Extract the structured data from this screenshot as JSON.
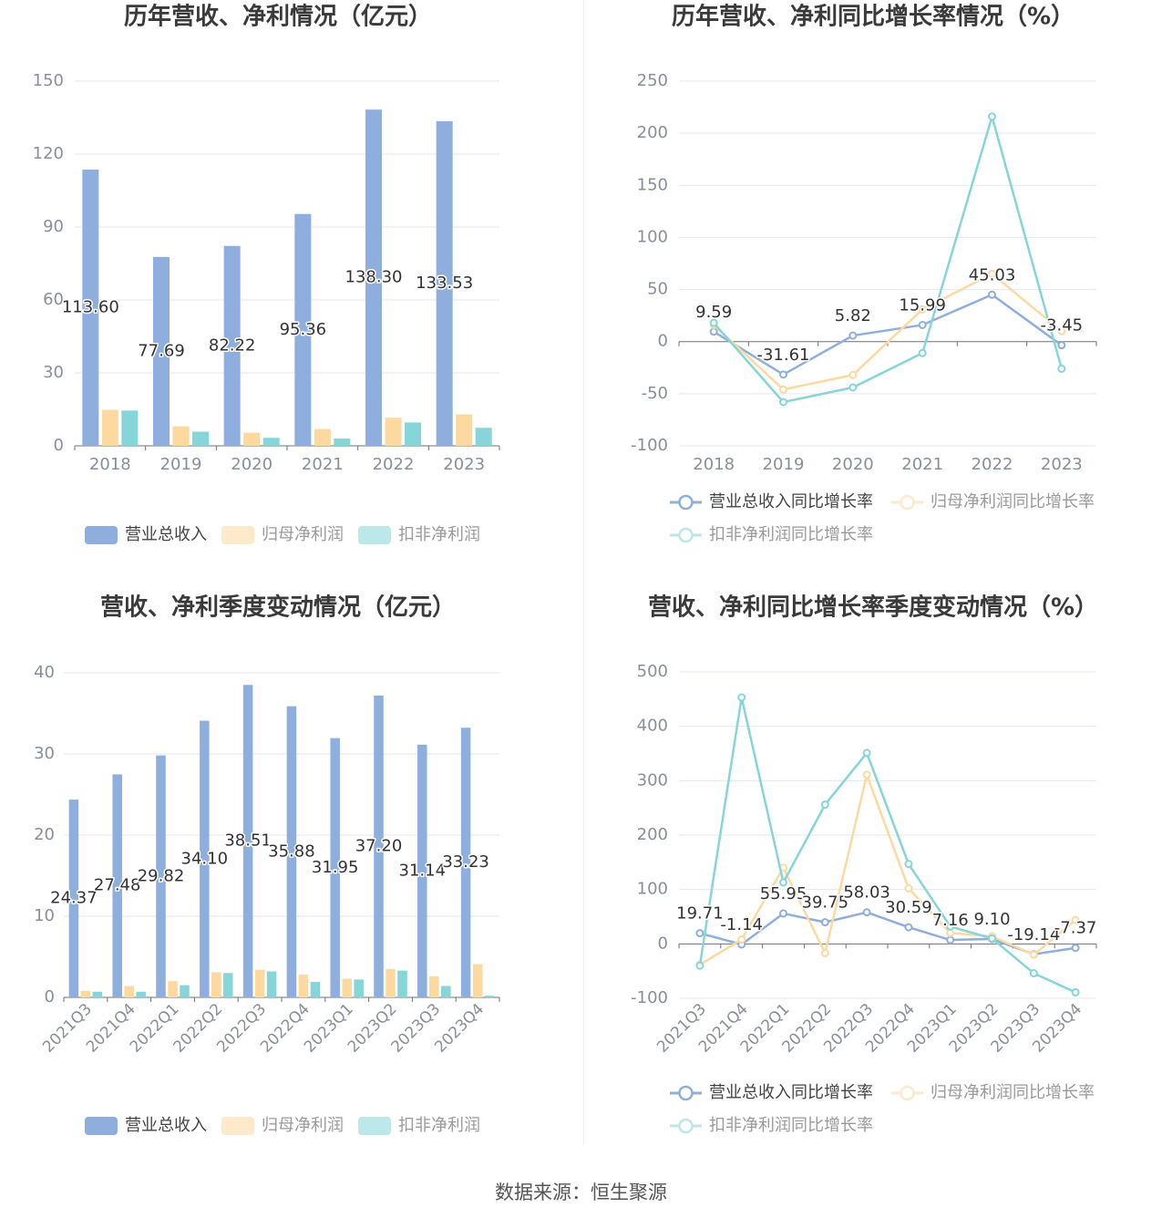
{
  "colors": {
    "series": [
      "#8eaedd",
      "#fdd9a0",
      "#86d5d9"
    ]
  },
  "chart_data": [
    {
      "type": "bar",
      "title": "历年营收、净利情况（亿元）",
      "categories": [
        "2018",
        "2019",
        "2020",
        "2021",
        "2022",
        "2023"
      ],
      "ylim": [
        0,
        150
      ],
      "yticks": [
        0,
        30,
        60,
        90,
        120,
        150
      ],
      "grid": true,
      "legend": "bottom",
      "series": [
        {
          "name": "营业总收入",
          "values": [
            113.6,
            77.69,
            82.22,
            95.36,
            138.3,
            133.53
          ],
          "data_labels": [
            "113.60",
            "77.69",
            "82.22",
            "95.36",
            "138.30",
            "133.53"
          ]
        },
        {
          "name": "归母净利润",
          "values": [
            14.8,
            8.0,
            5.4,
            6.9,
            11.6,
            12.9
          ]
        },
        {
          "name": "扣非净利润",
          "values": [
            14.5,
            5.8,
            3.3,
            3.0,
            9.6,
            7.4
          ]
        }
      ]
    },
    {
      "type": "line",
      "title": "历年营收、净利同比增长率情况（%）",
      "categories": [
        "2018",
        "2019",
        "2020",
        "2021",
        "2022",
        "2023"
      ],
      "ylim": [
        -100,
        250
      ],
      "yticks": [
        -100,
        -50,
        0,
        50,
        100,
        150,
        200,
        250
      ],
      "grid": true,
      "legend": "bottom",
      "series": [
        {
          "name": "营业总收入同比增长率",
          "values": [
            9.59,
            -31.61,
            5.82,
            15.99,
            45.03,
            -3.45
          ],
          "data_labels": [
            "9.59",
            "-31.61",
            "5.82",
            "15.99",
            "45.03",
            "-3.45"
          ]
        },
        {
          "name": "归母净利润同比增长率",
          "values": [
            16,
            -46,
            -32,
            31,
            65,
            10
          ]
        },
        {
          "name": "扣非净利润同比增长率",
          "values": [
            18,
            -58,
            -44,
            -11,
            216,
            -26
          ]
        }
      ]
    },
    {
      "type": "bar",
      "title": "营收、净利季度变动情况（亿元）",
      "categories": [
        "2021Q3",
        "2021Q4",
        "2022Q1",
        "2022Q2",
        "2022Q3",
        "2022Q4",
        "2023Q1",
        "2023Q2",
        "2023Q3",
        "2023Q4"
      ],
      "ylim": [
        0,
        40
      ],
      "yticks": [
        0,
        10,
        20,
        30,
        40
      ],
      "grid": true,
      "legend": "bottom",
      "series": [
        {
          "name": "营业总收入",
          "values": [
            24.37,
            27.48,
            29.82,
            34.1,
            38.51,
            35.88,
            31.95,
            37.2,
            31.14,
            33.23
          ],
          "data_labels": [
            "24.37",
            "27.48",
            "29.82",
            "34.10",
            "38.51",
            "35.88",
            "31.95",
            "37.20",
            "31.14",
            "33.23"
          ]
        },
        {
          "name": "归母净利润",
          "values": [
            0.8,
            1.4,
            2.0,
            3.1,
            3.4,
            2.8,
            2.3,
            3.5,
            2.6,
            4.1
          ]
        },
        {
          "name": "扣非净利润",
          "values": [
            0.7,
            0.7,
            1.5,
            3.0,
            3.2,
            1.9,
            2.2,
            3.3,
            1.4,
            0.2
          ]
        }
      ]
    },
    {
      "type": "line",
      "title": "营收、净利同比增长率季度变动情况（%）",
      "categories": [
        "2021Q3",
        "2021Q4",
        "2022Q1",
        "2022Q2",
        "2022Q3",
        "2022Q4",
        "2023Q1",
        "2023Q2",
        "2023Q3",
        "2023Q4"
      ],
      "ylim": [
        -100,
        500
      ],
      "yticks": [
        -100,
        0,
        100,
        200,
        300,
        400,
        500
      ],
      "grid": true,
      "legend": "bottom",
      "series": [
        {
          "name": "营业总收入同比增长率",
          "values": [
            19.71,
            -1.14,
            55.95,
            39.75,
            58.03,
            30.59,
            7.16,
            9.1,
            -19.14,
            -7.37
          ],
          "data_labels": [
            "19.71",
            "-1.14",
            "55.95",
            "39.75",
            "58.03",
            "30.59",
            "7.16",
            "9.10",
            "-19.14",
            "-7.37"
          ]
        },
        {
          "name": "归母净利润同比增长率",
          "values": [
            -38,
            8,
            140,
            -17,
            311,
            102,
            20,
            14,
            -20,
            44
          ]
        },
        {
          "name": "扣非净利润同比增长率",
          "values": [
            -40,
            453,
            113,
            256,
            351,
            147,
            32,
            10,
            -54,
            -89
          ]
        }
      ]
    }
  ],
  "footer": {
    "source": "数据来源：恒生聚源"
  }
}
